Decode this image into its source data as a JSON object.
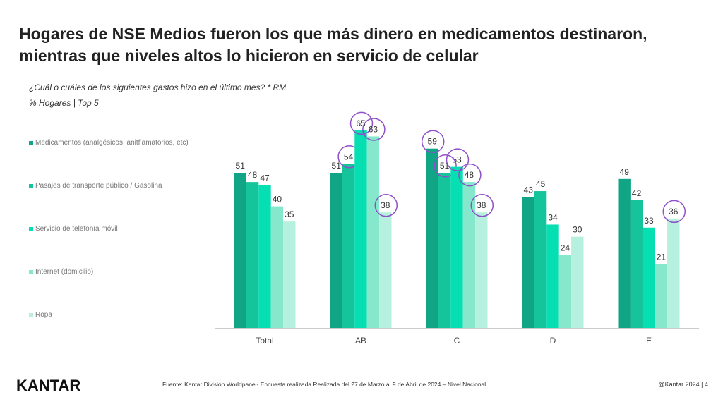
{
  "title": "Hogares de NSE Medios fueron los que más dinero en medicamentos destinaron, mientras que niveles altos lo hicieron en servicio de celular",
  "question": "¿Cuál o cuáles de los siguientes gastos hizo en el último mes? * RM",
  "subtitle": "% Hogares | Top 5",
  "chart_data": {
    "type": "bar",
    "categories": [
      "Total",
      "AB",
      "C",
      "D",
      "E"
    ],
    "series": [
      {
        "name": "Medicamentos (analgésicos, anitflamatorios, etc)",
        "color": "#10a585",
        "values": [
          51,
          51,
          59,
          43,
          49
        ]
      },
      {
        "name": "Pasajes de transporte público / Gasolina",
        "color": "#16c49c",
        "values": [
          48,
          54,
          51,
          45,
          42
        ]
      },
      {
        "name": "Servicio de telefonía móvil",
        "color": "#05dfb2",
        "values": [
          47,
          65,
          53,
          34,
          33
        ]
      },
      {
        "name": "Internet (domicilio)",
        "color": "#85e8cc",
        "values": [
          40,
          63,
          48,
          24,
          21
        ]
      },
      {
        "name": "Ropa",
        "color": "#b5f1de",
        "values": [
          35,
          38,
          38,
          30,
          36
        ]
      }
    ],
    "highlighted": {
      "AB": [
        1,
        2,
        3,
        4
      ],
      "C": [
        0,
        1,
        2,
        3,
        4
      ],
      "E": [
        4
      ]
    },
    "highlight_color": "#8e4fc9",
    "ylim": [
      0,
      70
    ],
    "legend": "left"
  },
  "footer": {
    "logo": "KANTAR",
    "source": "Fuente: Kantar División Worldpanel- Encuesta realizada Realizada del 27 de Marzo al 9 de Abril de 2024 – Nivel Nacional",
    "page": "@Kantar 2024 |  4"
  }
}
